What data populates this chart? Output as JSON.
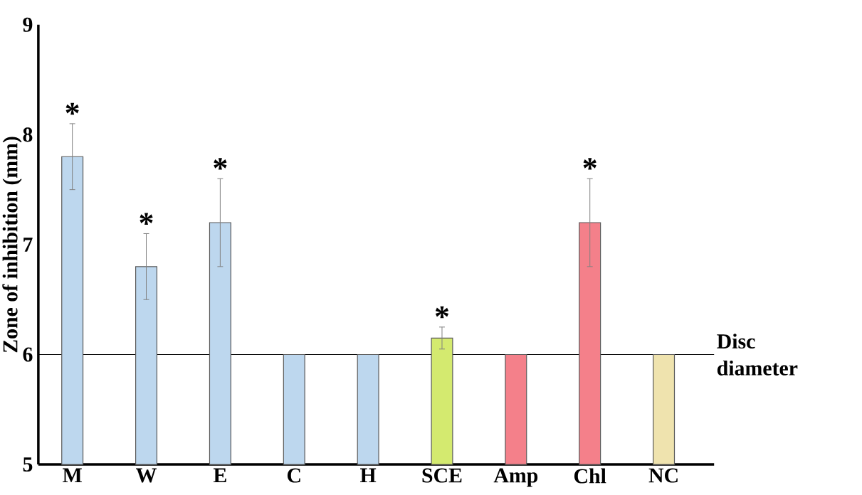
{
  "chart_data": {
    "type": "bar",
    "ylabel": "Zone of inhibition (mm)",
    "categories": [
      "M",
      "W",
      "E",
      "C",
      "H",
      "SCE",
      "Amp",
      "Chl",
      "NC"
    ],
    "values": [
      7.8,
      6.8,
      7.2,
      6,
      6,
      6.15,
      6,
      7.2,
      6
    ],
    "errors": [
      0.3,
      0.3,
      0.4,
      null,
      null,
      0.1,
      null,
      0.4,
      null
    ],
    "colors": [
      "#bdd7ee",
      "#bdd7ee",
      "#bdd7ee",
      "#bdd7ee",
      "#bdd7ee",
      "#d4ea6f",
      "#f4808a",
      "#f4808a",
      "#efe3ae"
    ],
    "ylim": [
      5,
      9
    ],
    "yticks": [
      5,
      6,
      7,
      8,
      9
    ],
    "grid": false,
    "ref_lines": [
      {
        "axis": "y",
        "value": 6,
        "label": "Disc diameter",
        "color": "#000000"
      }
    ],
    "annotations": [
      {
        "text": "*",
        "x": "M",
        "y": 8.1
      },
      {
        "text": "*",
        "x": "W",
        "y": 7.1
      },
      {
        "text": "*",
        "x": "E",
        "y": 7.6
      },
      {
        "text": "*",
        "x": "SCE",
        "y": 6.25
      },
      {
        "text": "*",
        "x": "Chl",
        "y": 7.6
      }
    ]
  }
}
